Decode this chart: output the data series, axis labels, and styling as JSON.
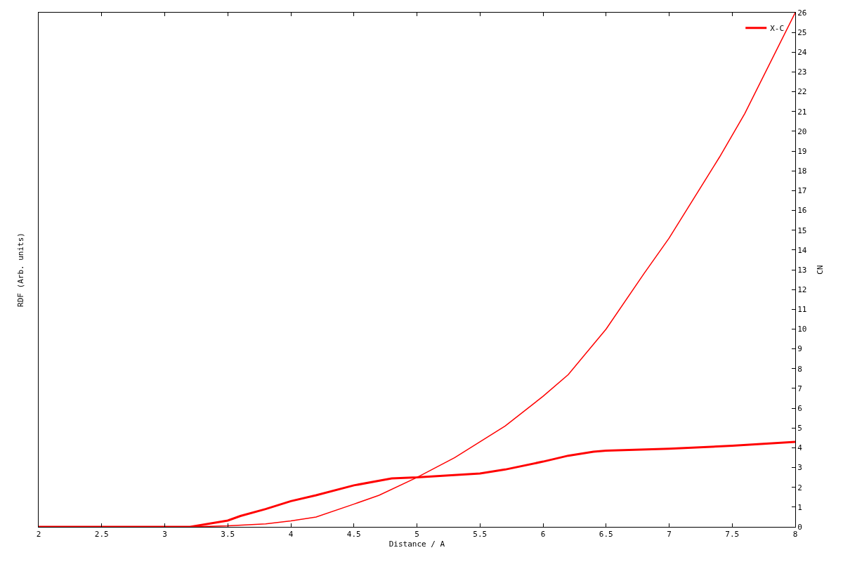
{
  "chart_data": {
    "type": "line",
    "xlabel": "Distance / A",
    "ylabel": "RDF (Arb. units)",
    "y2label": "CN",
    "xlim": [
      2,
      8
    ],
    "xticks": [
      2,
      2.5,
      3,
      3.5,
      4,
      4.5,
      5,
      5.5,
      6,
      6.5,
      7,
      7.5,
      8
    ],
    "y2lim": [
      0,
      26
    ],
    "y2ticks": [
      0,
      1,
      2,
      3,
      4,
      5,
      6,
      7,
      8,
      9,
      10,
      11,
      12,
      13,
      14,
      15,
      16,
      17,
      18,
      19,
      20,
      21,
      22,
      23,
      24,
      25,
      26
    ],
    "grid": false,
    "legend": "top right",
    "marker": "none",
    "line_style": "solid",
    "series": [
      {
        "name": "X-C",
        "color": "#ff0000",
        "axis": "y2",
        "x": [
          2,
          3.2,
          3.5,
          3.6,
          3.8,
          4.0,
          4.2,
          4.5,
          4.8,
          5.0,
          5.5,
          5.7,
          6.0,
          6.2,
          6.4,
          6.5,
          7.0,
          7.5,
          8.0
        ],
        "values": [
          0,
          0,
          0.32,
          0.55,
          0.9,
          1.3,
          1.6,
          2.1,
          2.45,
          2.5,
          2.7,
          2.9,
          3.3,
          3.6,
          3.8,
          3.85,
          3.95,
          4.1,
          4.3
        ]
      },
      {
        "color": "#ff0000",
        "axis": "y2",
        "x": [
          2,
          3.2,
          3.5,
          3.8,
          4.0,
          4.2,
          4.5,
          4.7,
          5.0,
          5.3,
          5.5,
          5.7,
          6.0,
          6.2,
          6.5,
          6.8,
          7.0,
          7.4,
          7.6,
          8.0
        ],
        "values": [
          0,
          0,
          0.05,
          0.15,
          0.3,
          0.5,
          1.15,
          1.6,
          2.5,
          3.5,
          4.3,
          5.1,
          6.6,
          7.7,
          10.0,
          12.8,
          14.6,
          18.7,
          20.9,
          26.0
        ]
      }
    ]
  }
}
